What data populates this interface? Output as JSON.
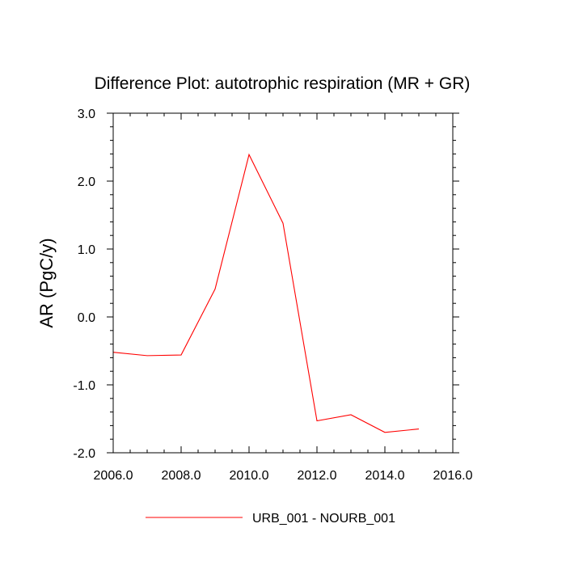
{
  "chart_data": {
    "type": "line",
    "title": "Difference Plot: autotrophic respiration (MR + GR)",
    "xlabel": "",
    "ylabel": "AR  (PgC/y)",
    "xlim": [
      2006.0,
      2016.0
    ],
    "ylim": [
      -2.0,
      3.0
    ],
    "x_ticks": [
      2006.0,
      2008.0,
      2010.0,
      2012.0,
      2014.0,
      2016.0
    ],
    "x_tick_labels": [
      "2006.0",
      "2008.0",
      "2010.0",
      "2012.0",
      "2014.0",
      "2016.0"
    ],
    "x_minor_step": 0.5,
    "y_ticks": [
      3.0,
      2.0,
      1.0,
      0.0,
      -1.0,
      -2.0
    ],
    "y_tick_labels": [
      "3.0",
      "2.0",
      "1.0",
      "0.0",
      "-1.0",
      "-2.0"
    ],
    "y_minor_step": 0.2,
    "grid": false,
    "legend_position": "bottom-center",
    "series": [
      {
        "name": "URB_001 - NOURB_001",
        "color": "#ff0000",
        "x": [
          2006,
          2007,
          2008,
          2009,
          2010,
          2011,
          2012,
          2013,
          2014,
          2015
        ],
        "y": [
          -0.52,
          -0.57,
          -0.56,
          0.41,
          2.39,
          1.38,
          -1.53,
          -1.44,
          -1.7,
          -1.65
        ]
      }
    ]
  }
}
